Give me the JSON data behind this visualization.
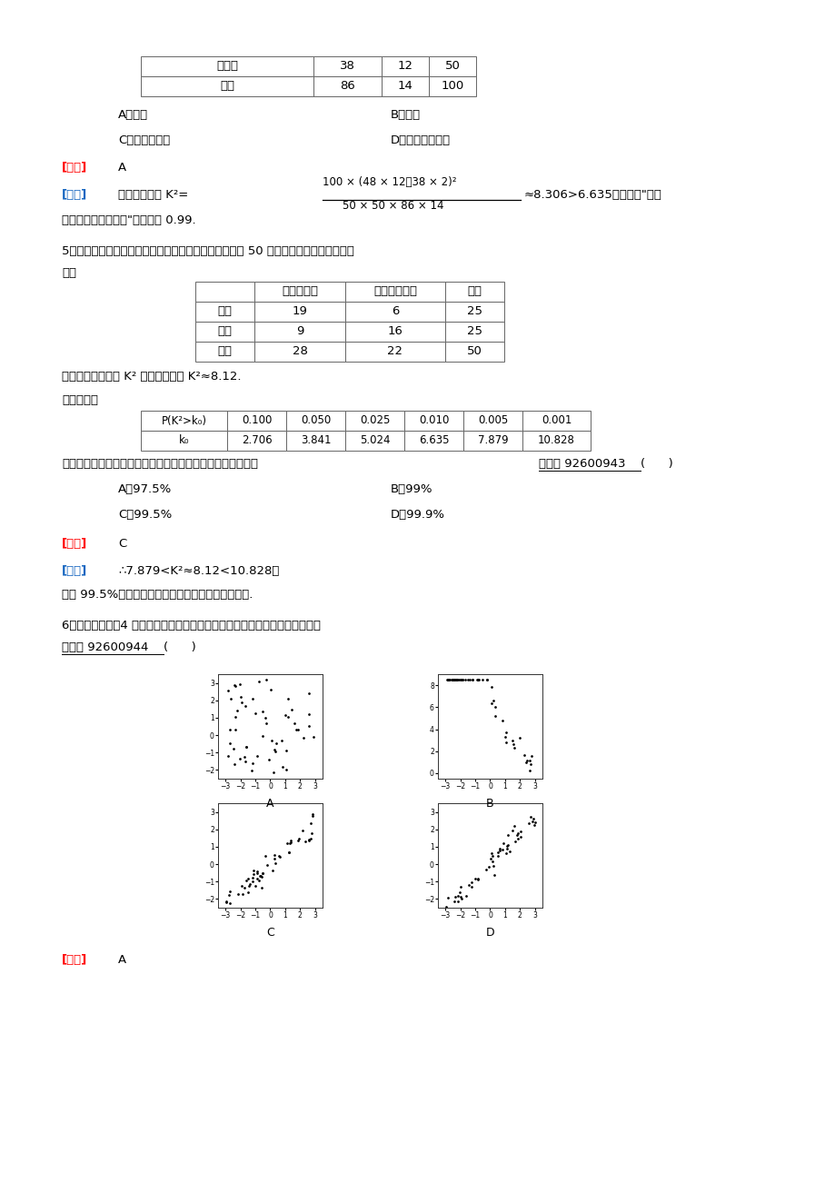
{
  "bg_color": "#ffffff",
  "table1_rows": [
    [
      "对比班",
      "38",
      "12",
      "50"
    ],
    [
      "总计",
      "86",
      "14",
      "100"
    ]
  ],
  "table2_headers": [
    "",
    "喜爱打篮球",
    "不喜爱打篮球",
    "总计"
  ],
  "table2_rows": [
    [
      "男生",
      "19",
      "6",
      "25"
    ],
    [
      "女生",
      "9",
      "16",
      "25"
    ],
    [
      "总计",
      "28",
      "22",
      "50"
    ]
  ],
  "table3_rows": [
    [
      "P(K²>k₀)",
      "0.100",
      "0.050",
      "0.025",
      "0.010",
      "0.005",
      "0.001"
    ],
    [
      "k₀",
      "2.706",
      "3.841",
      "5.024",
      "6.635",
      "7.879",
      "10.828"
    ]
  ]
}
